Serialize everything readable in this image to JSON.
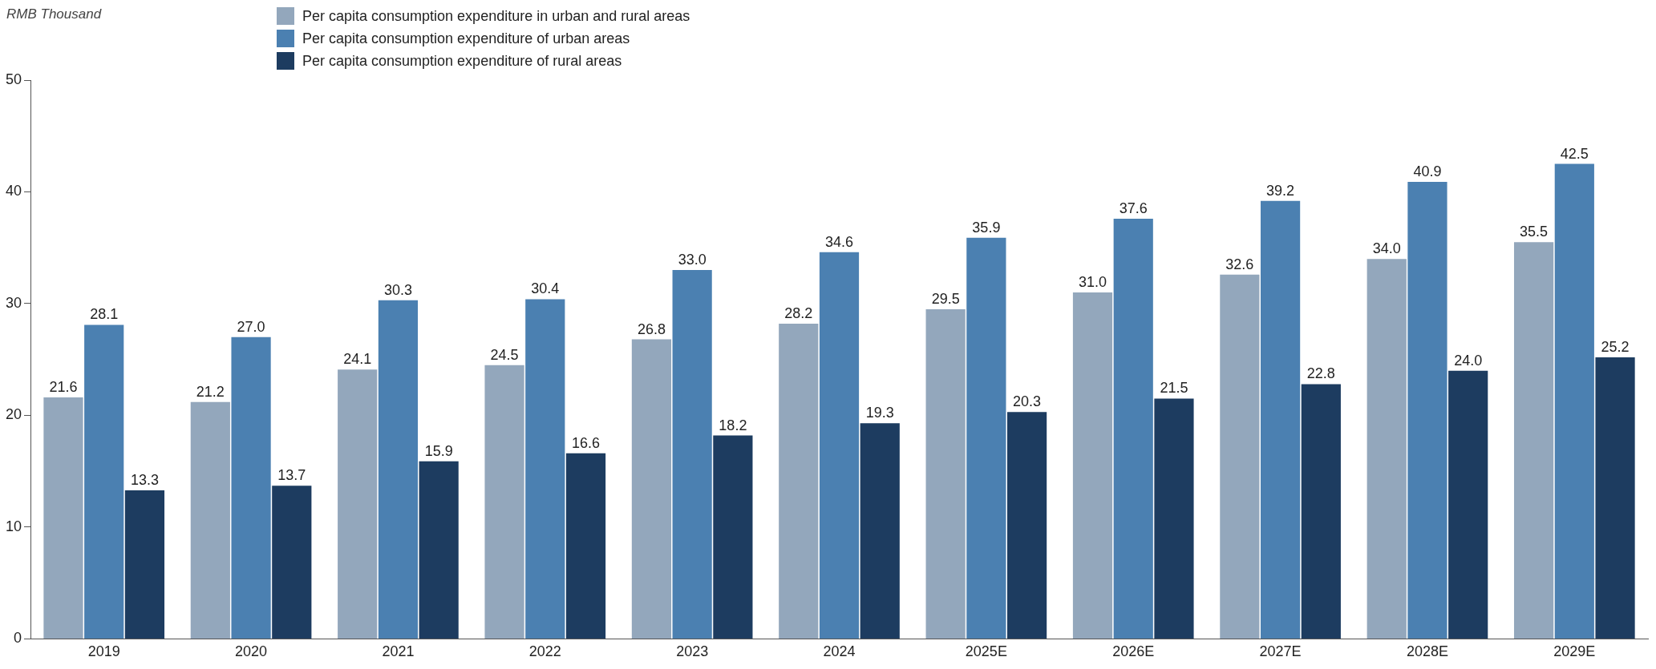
{
  "chart_data": {
    "type": "bar",
    "ylabel": "RMB Thousand",
    "categories": [
      "2019",
      "2020",
      "2021",
      "2022",
      "2023",
      "2024",
      "2025E",
      "2026E",
      "2027E",
      "2028E",
      "2029E"
    ],
    "series": [
      {
        "name": "Per capita consumption expenditure in urban and rural areas",
        "color": "#93a7bc",
        "values": [
          21.6,
          21.2,
          24.1,
          24.5,
          26.8,
          28.2,
          29.5,
          31.0,
          32.6,
          34.0,
          35.5
        ],
        "value_labels": [
          "21.6",
          "21.2",
          "24.1",
          "24.5",
          "26.8",
          "28.2",
          "29.5",
          "31.0",
          "32.6",
          "34.0",
          "35.5"
        ]
      },
      {
        "name": "Per capita consumption expenditure of urban areas",
        "color": "#4b80b1",
        "values": [
          28.1,
          27.0,
          30.3,
          30.4,
          33.0,
          34.6,
          35.9,
          37.6,
          39.2,
          40.9,
          42.5
        ],
        "value_labels": [
          "28.1",
          "27.0",
          "30.3",
          "30.4",
          "33.0",
          "34.6",
          "35.9",
          "37.6",
          "39.2",
          "40.9",
          "42.5"
        ]
      },
      {
        "name": "Per capita consumption expenditure of rural areas",
        "color": "#1d3c60",
        "values": [
          13.3,
          13.7,
          15.9,
          16.6,
          18.2,
          19.3,
          20.3,
          21.5,
          22.8,
          24.0,
          25.2
        ],
        "value_labels": [
          "13.3",
          "13.7",
          "15.9",
          "16.6",
          "18.2",
          "19.3",
          "20.3",
          "21.5",
          "22.8",
          "24.0",
          "25.2"
        ]
      }
    ],
    "ylim": [
      0,
      50
    ],
    "yticks": [
      0,
      10,
      20,
      30,
      40,
      50
    ],
    "grid": false,
    "legend": "top"
  }
}
